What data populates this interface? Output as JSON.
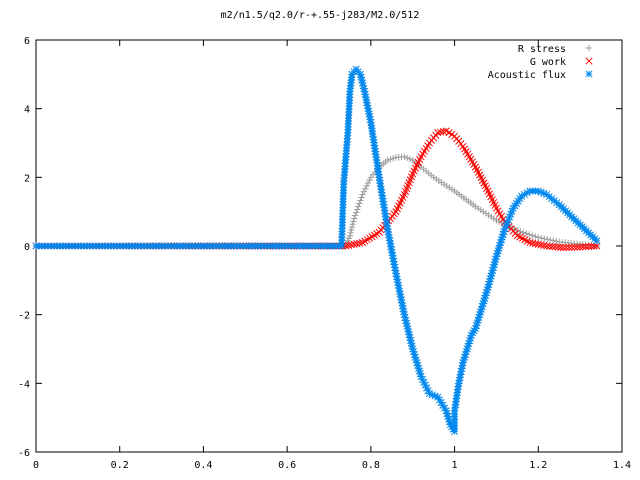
{
  "chart_data": {
    "type": "scatter",
    "title": "m2/n1.5/q2.0/r-+.55-j283/M2.0/512",
    "xlabel": "",
    "ylabel": "",
    "xlim": [
      0,
      1.4
    ],
    "ylim": [
      -6,
      6
    ],
    "x_ticks": [
      "0",
      "0.2",
      "0.4",
      "0.6",
      "0.8",
      "1",
      "1.2",
      "1.4"
    ],
    "y_ticks": [
      "6",
      "4",
      "2",
      "0",
      "-2",
      "-4",
      "-6"
    ],
    "x_tick_values": [
      0,
      0.2,
      0.4,
      0.6,
      0.8,
      1.0,
      1.2,
      1.4
    ],
    "y_tick_values": [
      6,
      4,
      2,
      0,
      -2,
      -4,
      -6
    ],
    "grid": false,
    "legend_position": "top-right",
    "series": [
      {
        "name": "R stress",
        "marker": "plus",
        "color": "#a0a0a0",
        "points": [
          [
            0.0,
            0.0
          ],
          [
            0.74,
            0.0
          ],
          [
            0.75,
            0.3
          ],
          [
            0.76,
            0.8
          ],
          [
            0.78,
            1.5
          ],
          [
            0.8,
            2.0
          ],
          [
            0.82,
            2.3
          ],
          [
            0.84,
            2.5
          ],
          [
            0.86,
            2.58
          ],
          [
            0.88,
            2.6
          ],
          [
            0.9,
            2.5
          ],
          [
            0.92,
            2.3
          ],
          [
            0.95,
            2.0
          ],
          [
            1.0,
            1.6
          ],
          [
            1.05,
            1.15
          ],
          [
            1.1,
            0.75
          ],
          [
            1.15,
            0.45
          ],
          [
            1.2,
            0.25
          ],
          [
            1.25,
            0.12
          ],
          [
            1.3,
            0.05
          ],
          [
            1.34,
            0.0
          ]
        ]
      },
      {
        "name": "G work",
        "marker": "cross",
        "color": "#ff0000",
        "points": [
          [
            0.0,
            0.0
          ],
          [
            0.74,
            0.0
          ],
          [
            0.78,
            0.1
          ],
          [
            0.82,
            0.4
          ],
          [
            0.86,
            1.0
          ],
          [
            0.88,
            1.5
          ],
          [
            0.9,
            2.1
          ],
          [
            0.92,
            2.6
          ],
          [
            0.94,
            3.0
          ],
          [
            0.96,
            3.3
          ],
          [
            0.98,
            3.35
          ],
          [
            1.0,
            3.2
          ],
          [
            1.02,
            2.9
          ],
          [
            1.05,
            2.3
          ],
          [
            1.08,
            1.6
          ],
          [
            1.1,
            1.1
          ],
          [
            1.12,
            0.7
          ],
          [
            1.15,
            0.3
          ],
          [
            1.18,
            0.1
          ],
          [
            1.22,
            0.0
          ],
          [
            1.26,
            -0.05
          ],
          [
            1.3,
            -0.03
          ],
          [
            1.34,
            0.0
          ]
        ]
      },
      {
        "name": "Acoustic flux",
        "marker": "star",
        "color": "#0088ee",
        "points": [
          [
            0.0,
            0.0
          ],
          [
            0.73,
            0.0
          ],
          [
            0.735,
            1.8
          ],
          [
            0.745,
            3.3
          ],
          [
            0.75,
            4.5
          ],
          [
            0.755,
            5.0
          ],
          [
            0.765,
            5.15
          ],
          [
            0.775,
            5.0
          ],
          [
            0.785,
            4.5
          ],
          [
            0.8,
            3.6
          ],
          [
            0.82,
            2.0
          ],
          [
            0.84,
            0.5
          ],
          [
            0.86,
            -0.8
          ],
          [
            0.88,
            -2.0
          ],
          [
            0.9,
            -3.0
          ],
          [
            0.92,
            -3.8
          ],
          [
            0.94,
            -4.3
          ],
          [
            0.96,
            -4.4
          ],
          [
            0.98,
            -4.8
          ],
          [
            0.99,
            -5.2
          ],
          [
            1.0,
            -5.4
          ],
          [
            1.0,
            -4.8
          ],
          [
            1.01,
            -4.0
          ],
          [
            1.02,
            -3.4
          ],
          [
            1.03,
            -3.0
          ],
          [
            1.04,
            -2.6
          ],
          [
            1.05,
            -2.4
          ],
          [
            1.06,
            -2.0
          ],
          [
            1.08,
            -1.2
          ],
          [
            1.1,
            -0.3
          ],
          [
            1.12,
            0.5
          ],
          [
            1.14,
            1.1
          ],
          [
            1.16,
            1.45
          ],
          [
            1.18,
            1.6
          ],
          [
            1.2,
            1.6
          ],
          [
            1.22,
            1.5
          ],
          [
            1.25,
            1.2
          ],
          [
            1.28,
            0.85
          ],
          [
            1.31,
            0.5
          ],
          [
            1.34,
            0.15
          ]
        ]
      }
    ]
  }
}
